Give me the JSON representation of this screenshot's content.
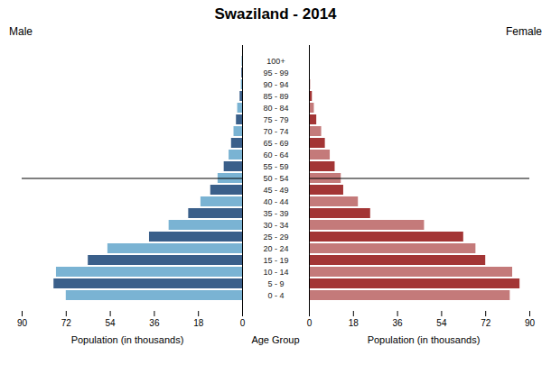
{
  "chart_data": {
    "type": "bar",
    "orientation": "horizontal",
    "title": "Swaziland - 2014",
    "xlabel": "Population (in thousands)",
    "ylabel": "Age Group",
    "categories": [
      "0 - 4",
      "5 - 9",
      "10 - 14",
      "15 - 19",
      "20 - 24",
      "25 - 29",
      "30 - 34",
      "35 - 39",
      "40 - 44",
      "45 - 49",
      "50 - 54",
      "55 - 59",
      "60 - 64",
      "65 - 69",
      "70 - 74",
      "75 - 79",
      "80 - 84",
      "85 - 89",
      "90 - 94",
      "95 - 99",
      "100+"
    ],
    "series": [
      {
        "name": "Male",
        "values": [
          72.0,
          77.0,
          76.0,
          63.0,
          55.0,
          38.0,
          30.0,
          22.0,
          17.0,
          13.0,
          10.0,
          7.5,
          5.5,
          4.5,
          3.5,
          2.5,
          2.0,
          1.0,
          0.5,
          0.3,
          0.2
        ],
        "colors": [
          "#7ab3d3",
          "#3a5f8a",
          "#7ab3d3",
          "#3a5f8a",
          "#7ab3d3",
          "#3a5f8a",
          "#7ab3d3",
          "#3a5f8a",
          "#7ab3d3",
          "#3a5f8a",
          "#7ab3d3",
          "#3a5f8a",
          "#7ab3d3",
          "#3a5f8a",
          "#7ab3d3",
          "#3a5f8a",
          "#7ab3d3",
          "#3a5f8a",
          "#7ab3d3",
          "#3a5f8a",
          "#7ab3d3"
        ]
      },
      {
        "name": "Female",
        "values": [
          82.0,
          86.0,
          83.0,
          72.0,
          68.0,
          63.0,
          47.0,
          25.0,
          20.0,
          14.0,
          13.0,
          10.5,
          8.5,
          6.5,
          5.0,
          3.0,
          2.0,
          1.2,
          0.5,
          0.3,
          0.2
        ],
        "colors": [
          "#c47a7a",
          "#a33535",
          "#c47a7a",
          "#a33535",
          "#c47a7a",
          "#a33535",
          "#c47a7a",
          "#a33535",
          "#c47a7a",
          "#a33535",
          "#c47a7a",
          "#a33535",
          "#c47a7a",
          "#a33535",
          "#c47a7a",
          "#a33535",
          "#c47a7a",
          "#a33535",
          "#c47a7a",
          "#a33535",
          "#c47a7a"
        ]
      }
    ],
    "xlim": [
      0,
      90
    ],
    "xticks": [
      0,
      18,
      36,
      54,
      72,
      90
    ],
    "grid": false
  }
}
